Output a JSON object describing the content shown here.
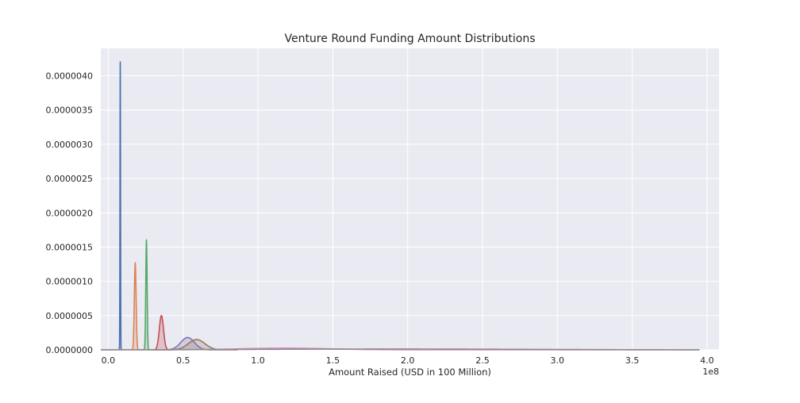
{
  "chart_data": {
    "type": "area",
    "title": "Venture Round Funding Amount Distributions",
    "xlabel": "Amount Raised (USD in 100 Million)",
    "ylabel": "",
    "x_offset_label": "1e8",
    "x_scale": 100000000,
    "xlim": [
      -0.05,
      4.08
    ],
    "ylim": [
      0,
      4.4e-06
    ],
    "x_ticks": [
      0.0,
      0.5,
      1.0,
      1.5,
      2.0,
      2.5,
      3.0,
      3.5,
      4.0
    ],
    "x_tick_labels": [
      "0.0",
      "0.5",
      "1.0",
      "1.5",
      "2.0",
      "2.5",
      "3.0",
      "3.5",
      "4.0"
    ],
    "y_ticks": [
      0,
      5e-07,
      1e-06,
      1.5e-06,
      2e-06,
      2.5e-06,
      3e-06,
      3.5e-06,
      4e-06
    ],
    "y_tick_labels": [
      "0.0000000",
      "0.0000005",
      "0.0000010",
      "0.0000015",
      "0.0000020",
      "0.0000025",
      "0.0000030",
      "0.0000035",
      "0.0000040"
    ],
    "grid": true,
    "legend": "none",
    "background": "#eaeaf2",
    "series": [
      {
        "color": "#4c72b0",
        "peak_x": 0.08,
        "peak_y": 4.21e-06,
        "width": 0.0018
      },
      {
        "color": "#dd8452",
        "peak_x": 0.18,
        "peak_y": 1.27e-06,
        "width": 0.006
      },
      {
        "color": "#55a868",
        "peak_x": 0.255,
        "peak_y": 1.6e-06,
        "width": 0.0045
      },
      {
        "color": "#c44e52",
        "peak_x": 0.355,
        "peak_y": 5e-07,
        "width": 0.014
      },
      {
        "color": "#8172b3",
        "peak_x": 0.53,
        "peak_y": 1.8e-07,
        "width": 0.045
      },
      {
        "color": "#937860",
        "peak_x": 0.59,
        "peak_y": 1.5e-07,
        "width": 0.055
      },
      {
        "color": "#da8bc3",
        "peak_x": 1.18,
        "peak_y": 2.5e-08,
        "width": 0.3,
        "x_end": 3.95
      },
      {
        "color": "#8c8c8c",
        "peak_x": 1.9,
        "peak_y": 1.2e-08,
        "width": 0.9,
        "x_end": 3.95
      }
    ]
  }
}
